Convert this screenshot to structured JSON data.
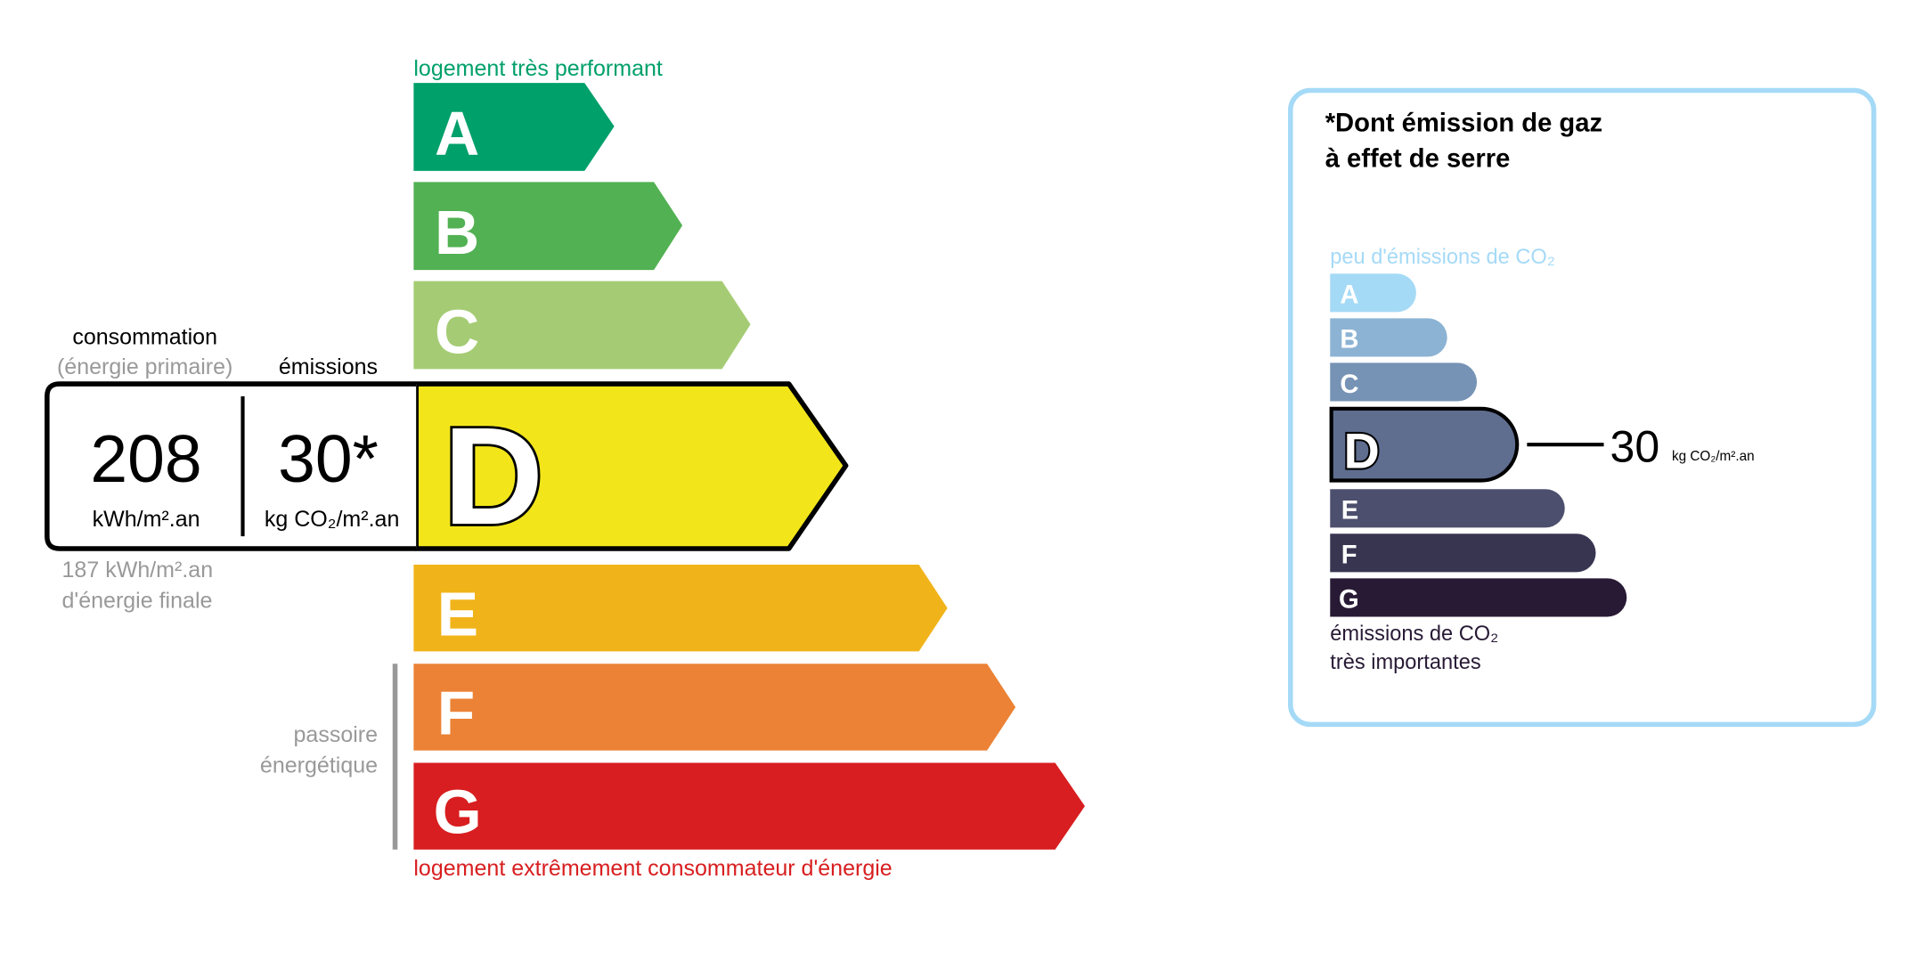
{
  "energy_label": {
    "top_caption": "logement très performant",
    "bottom_caption": "logement extrêmement consommateur d'énergie",
    "classes": [
      {
        "letter": "A",
        "color": "#00a06a"
      },
      {
        "letter": "B",
        "color": "#52b153"
      },
      {
        "letter": "C",
        "color": "#a5cc74"
      },
      {
        "letter": "D",
        "color": "#f2e61b"
      },
      {
        "letter": "E",
        "color": "#f0b41a"
      },
      {
        "letter": "F",
        "color": "#eb8235"
      },
      {
        "letter": "G",
        "color": "#d81e20"
      }
    ],
    "current_class": "D",
    "consumption_header": "consommation",
    "consumption_subheader": "(énergie primaire)",
    "emissions_header": "émissions",
    "consumption_value": "208",
    "consumption_unit": "kWh/m².an",
    "emissions_value": "30*",
    "emissions_unit": "kg CO₂/m².an",
    "final_energy_line1": "187 kWh/m².an",
    "final_energy_line2": "d'énergie finale",
    "passoire_line1": "passoire",
    "passoire_line2": "énergétique"
  },
  "ges_label": {
    "title_line1": "*Dont émission de gaz",
    "title_line2": "à effet de serre",
    "top_caption": "peu d'émissions de CO₂",
    "bottom_caption_line1": "émissions de CO₂",
    "bottom_caption_line2": "très importantes",
    "classes": [
      {
        "letter": "A",
        "color": "#a4daf6"
      },
      {
        "letter": "B",
        "color": "#8cb3d4"
      },
      {
        "letter": "C",
        "color": "#7693b5"
      },
      {
        "letter": "D",
        "color": "#5f6d8f"
      },
      {
        "letter": "E",
        "color": "#4d4f6e"
      },
      {
        "letter": "F",
        "color": "#383551"
      },
      {
        "letter": "G",
        "color": "#281a35"
      }
    ],
    "current_class": "D",
    "value": "30",
    "unit": "kg CO₂/m².an",
    "border_color": "#a5daf7"
  }
}
